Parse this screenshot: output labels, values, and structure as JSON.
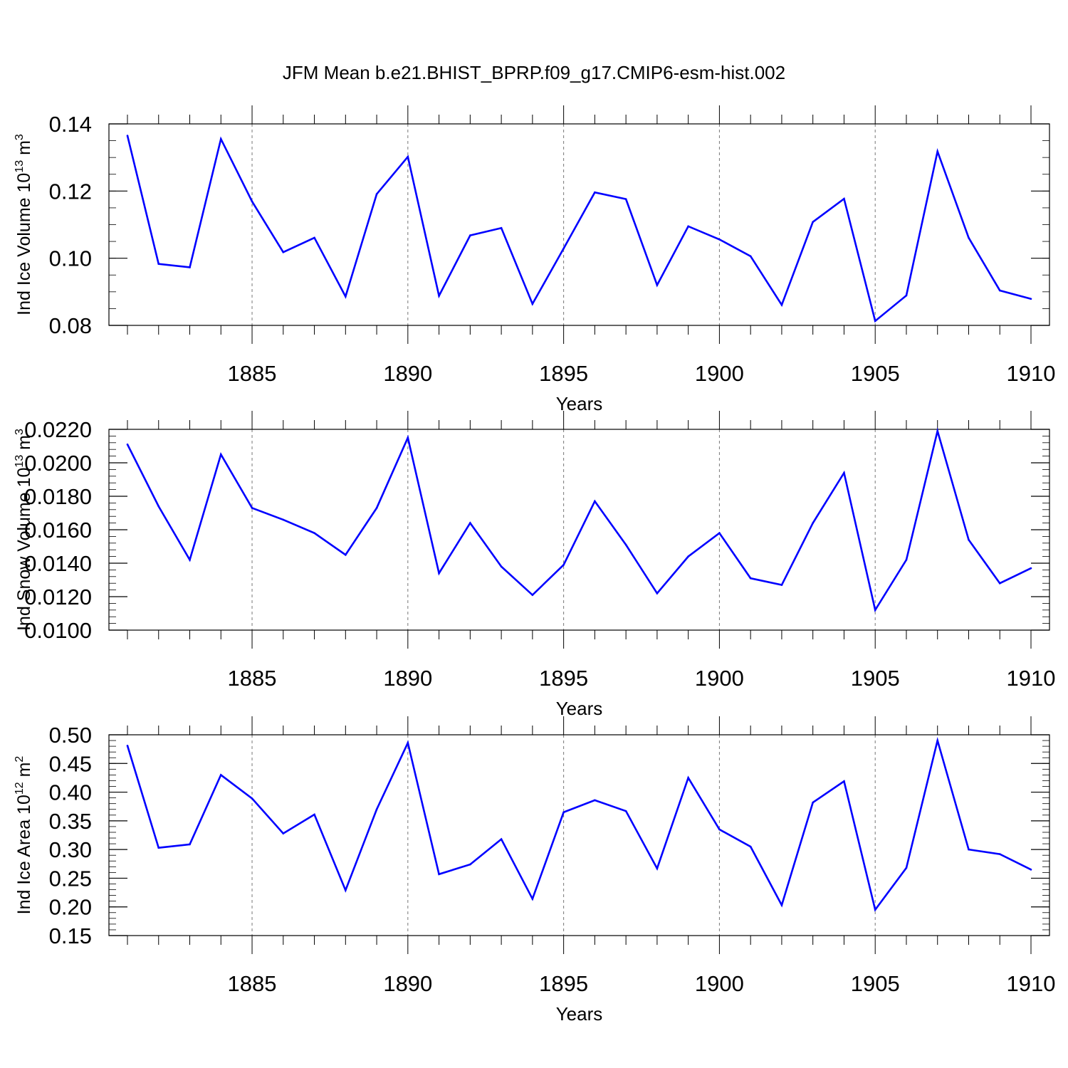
{
  "title": "JFM Mean b.e21.BHIST_BPRP.f09_g17.CMIP6-esm-hist.002",
  "colors": {
    "line": "#0000ff",
    "axis": "#000000",
    "grid": "#777777"
  },
  "chart_data": [
    {
      "type": "line",
      "ylabel_main": "Ind Ice Volume 10",
      "ylabel_exp": "13",
      "ylabel_unit": " m",
      "ylabel_unit_exp": "3",
      "xlabel": "Years",
      "xlim": [
        1881,
        1910
      ],
      "ylim": [
        0.08,
        0.14
      ],
      "yticks": [
        0.08,
        0.1,
        0.12,
        0.14
      ],
      "ytick_labels": [
        "0.08",
        "0.10",
        "0.12",
        "0.14"
      ],
      "yminor": 0.005,
      "xticks": [
        1885,
        1890,
        1895,
        1900,
        1905,
        1910
      ],
      "xtick_labels": [
        "1885",
        "1890",
        "1895",
        "1900",
        "1905",
        "1910"
      ],
      "grid": "vertical dashed at major x ticks",
      "x": [
        1881,
        1882,
        1883,
        1884,
        1885,
        1886,
        1887,
        1888,
        1889,
        1890,
        1891,
        1892,
        1893,
        1894,
        1895,
        1896,
        1897,
        1898,
        1899,
        1900,
        1901,
        1902,
        1903,
        1904,
        1905,
        1906,
        1907,
        1908,
        1909,
        1910
      ],
      "values": [
        0.1365,
        0.0983,
        0.0973,
        0.1355,
        0.1169,
        0.1018,
        0.1061,
        0.0886,
        0.1191,
        0.1302,
        0.0888,
        0.1068,
        0.109,
        0.0864,
        0.1029,
        0.1196,
        0.1176,
        0.092,
        0.1095,
        0.1056,
        0.1006,
        0.0861,
        0.1108,
        0.1177,
        0.0813,
        0.0889,
        0.1318,
        0.1061,
        0.0904,
        0.0879
      ]
    },
    {
      "type": "line",
      "ylabel_main": "Ind Snow Volume 10",
      "ylabel_exp": "13",
      "ylabel_unit": " m",
      "ylabel_unit_exp": "3",
      "xlabel": "Years",
      "xlim": [
        1881,
        1910
      ],
      "ylim": [
        0.01,
        0.022
      ],
      "yticks": [
        0.01,
        0.012,
        0.014,
        0.016,
        0.018,
        0.02,
        0.022
      ],
      "ytick_labels": [
        "0.0100",
        "0.0120",
        "0.0140",
        "0.0160",
        "0.0180",
        "0.0200",
        "0.0220"
      ],
      "yminor": 0.0004,
      "xticks": [
        1885,
        1890,
        1895,
        1900,
        1905,
        1910
      ],
      "xtick_labels": [
        "1885",
        "1890",
        "1895",
        "1900",
        "1905",
        "1910"
      ],
      "grid": "vertical dashed at major x ticks",
      "x": [
        1881,
        1882,
        1883,
        1884,
        1885,
        1886,
        1887,
        1888,
        1889,
        1890,
        1891,
        1892,
        1893,
        1894,
        1895,
        1896,
        1897,
        1898,
        1899,
        1900,
        1901,
        1902,
        1903,
        1904,
        1905,
        1906,
        1907,
        1908,
        1909,
        1910
      ],
      "values": [
        0.0211,
        0.0174,
        0.0142,
        0.0205,
        0.0173,
        0.0166,
        0.0158,
        0.0145,
        0.0173,
        0.0215,
        0.0134,
        0.0164,
        0.0138,
        0.0121,
        0.0139,
        0.0177,
        0.0151,
        0.0122,
        0.0144,
        0.0158,
        0.0131,
        0.0127,
        0.0164,
        0.0194,
        0.0112,
        0.0142,
        0.0219,
        0.0154,
        0.0128,
        0.0137
      ]
    },
    {
      "type": "line",
      "ylabel_main": "Ind Ice Area 10",
      "ylabel_exp": "12",
      "ylabel_unit": " m",
      "ylabel_unit_exp": "2",
      "xlabel": "Years",
      "xlim": [
        1881,
        1910
      ],
      "ylim": [
        0.15,
        0.5
      ],
      "yticks": [
        0.15,
        0.2,
        0.25,
        0.3,
        0.35,
        0.4,
        0.45,
        0.5
      ],
      "ytick_labels": [
        "0.15",
        "0.20",
        "0.25",
        "0.30",
        "0.35",
        "0.40",
        "0.45",
        "0.50"
      ],
      "yminor": 0.01,
      "xticks": [
        1885,
        1890,
        1895,
        1900,
        1905,
        1910
      ],
      "xtick_labels": [
        "1885",
        "1890",
        "1895",
        "1900",
        "1905",
        "1910"
      ],
      "grid": "vertical dashed at major x ticks",
      "x": [
        1881,
        1882,
        1883,
        1884,
        1885,
        1886,
        1887,
        1888,
        1889,
        1890,
        1891,
        1892,
        1893,
        1894,
        1895,
        1896,
        1897,
        1898,
        1899,
        1900,
        1901,
        1902,
        1903,
        1904,
        1905,
        1906,
        1907,
        1908,
        1909,
        1910
      ],
      "values": [
        0.481,
        0.303,
        0.309,
        0.43,
        0.389,
        0.328,
        0.361,
        0.229,
        0.37,
        0.486,
        0.257,
        0.274,
        0.318,
        0.214,
        0.365,
        0.386,
        0.367,
        0.267,
        0.425,
        0.335,
        0.305,
        0.203,
        0.382,
        0.419,
        0.195,
        0.268,
        0.49,
        0.3,
        0.292,
        0.265
      ]
    }
  ]
}
